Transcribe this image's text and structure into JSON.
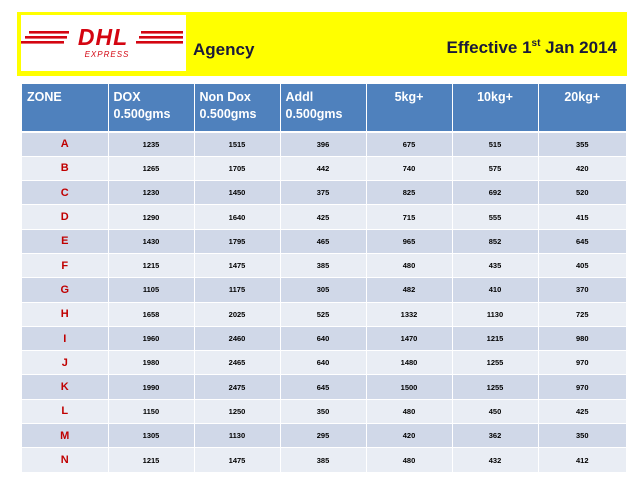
{
  "header": {
    "brand": "DHL",
    "brand_sub": "EXPRESS",
    "agency": "Agency",
    "effective_prefix": "Effective  1",
    "effective_sup": "st",
    "effective_suffix": " Jan 2014",
    "band_color": "#ffff00",
    "logo_red": "#d40511"
  },
  "table": {
    "header_color": "#4f81bd",
    "columns": [
      "ZONE",
      "DOX 0.500gms",
      "Non Dox 0.500gms",
      "Addl 0.500gms",
      "5kg+",
      "10kg+",
      "20kg+"
    ],
    "rows": [
      {
        "zone": "A",
        "values": [
          "1235",
          "1515",
          "396",
          "675",
          "515",
          "355"
        ]
      },
      {
        "zone": "B",
        "values": [
          "1265",
          "1705",
          "442",
          "740",
          "575",
          "420"
        ]
      },
      {
        "zone": "C",
        "values": [
          "1230",
          "1450",
          "375",
          "825",
          "692",
          "520"
        ]
      },
      {
        "zone": "D",
        "values": [
          "1290",
          "1640",
          "425",
          "715",
          "555",
          "415"
        ]
      },
      {
        "zone": "E",
        "values": [
          "1430",
          "1795",
          "465",
          "965",
          "852",
          "645"
        ]
      },
      {
        "zone": "F",
        "values": [
          "1215",
          "1475",
          "385",
          "480",
          "435",
          "405"
        ]
      },
      {
        "zone": "G",
        "values": [
          "1105",
          "1175",
          "305",
          "482",
          "410",
          "370"
        ]
      },
      {
        "zone": "H",
        "values": [
          "1658",
          "2025",
          "525",
          "1332",
          "1130",
          "725"
        ]
      },
      {
        "zone": "I",
        "values": [
          "1960",
          "2460",
          "640",
          "1470",
          "1215",
          "980"
        ]
      },
      {
        "zone": "J",
        "values": [
          "1980",
          "2465",
          "640",
          "1480",
          "1255",
          "970"
        ]
      },
      {
        "zone": "K",
        "values": [
          "1990",
          "2475",
          "645",
          "1500",
          "1255",
          "970"
        ]
      },
      {
        "zone": "L",
        "values": [
          "1150",
          "1250",
          "350",
          "480",
          "450",
          "425"
        ]
      },
      {
        "zone": "M",
        "values": [
          "1305",
          "1130",
          "295",
          "420",
          "362",
          "350"
        ]
      },
      {
        "zone": "N",
        "values": [
          "1215",
          "1475",
          "385",
          "480",
          "432",
          "412"
        ]
      }
    ]
  }
}
